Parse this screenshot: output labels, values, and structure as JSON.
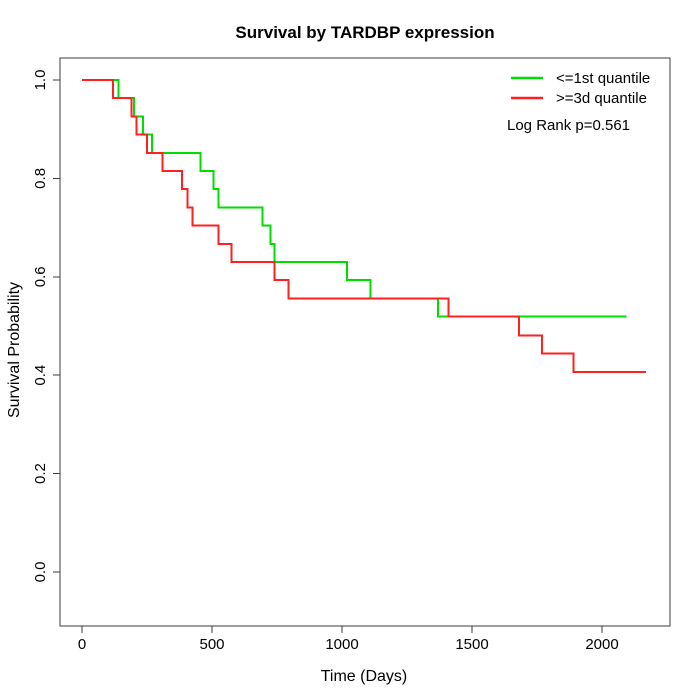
{
  "chart_data": {
    "type": "line",
    "subtype": "kaplan-meier-step-curves",
    "title": "Survival by TARDBP expression",
    "xlabel": "Time (Days)",
    "ylabel": "Survival Probability",
    "xlim": [
      0,
      2200
    ],
    "ylim": [
      0.0,
      1.0
    ],
    "x_ticks": [
      0,
      500,
      1000,
      1500,
      2000
    ],
    "y_ticks": [
      0.0,
      0.2,
      0.4,
      0.6,
      0.8,
      1.0
    ],
    "grid": false,
    "legend_position": "top-right",
    "annotation": "Log Rank p=0.561",
    "series": [
      {
        "key": "le-1st-quantile",
        "name": "<=1st quantile",
        "color": "#00DE00",
        "start": {
          "time": 0,
          "survival": 1.0
        },
        "event_times": [
          140,
          200,
          235,
          270,
          455,
          505,
          525,
          695,
          725,
          740,
          1020,
          1110,
          1370
        ],
        "survival_after_event": [
          0.963,
          0.926,
          0.889,
          0.852,
          0.815,
          0.778,
          0.741,
          0.704,
          0.667,
          0.63,
          0.593,
          0.556,
          0.519
        ],
        "followup_end": 2095
      },
      {
        "key": "ge-3d-quantile",
        "name": ">=3d quantile",
        "color": "#FF2020",
        "start": {
          "time": 0,
          "survival": 1.0
        },
        "event_times": [
          120,
          190,
          210,
          250,
          310,
          385,
          405,
          425,
          525,
          575,
          740,
          795,
          1410,
          1680,
          1770,
          1890
        ],
        "survival_after_event": [
          0.963,
          0.926,
          0.889,
          0.852,
          0.815,
          0.778,
          0.741,
          0.704,
          0.667,
          0.63,
          0.593,
          0.556,
          0.519,
          0.481,
          0.444,
          0.407
        ],
        "followup_end": 2170
      }
    ]
  }
}
